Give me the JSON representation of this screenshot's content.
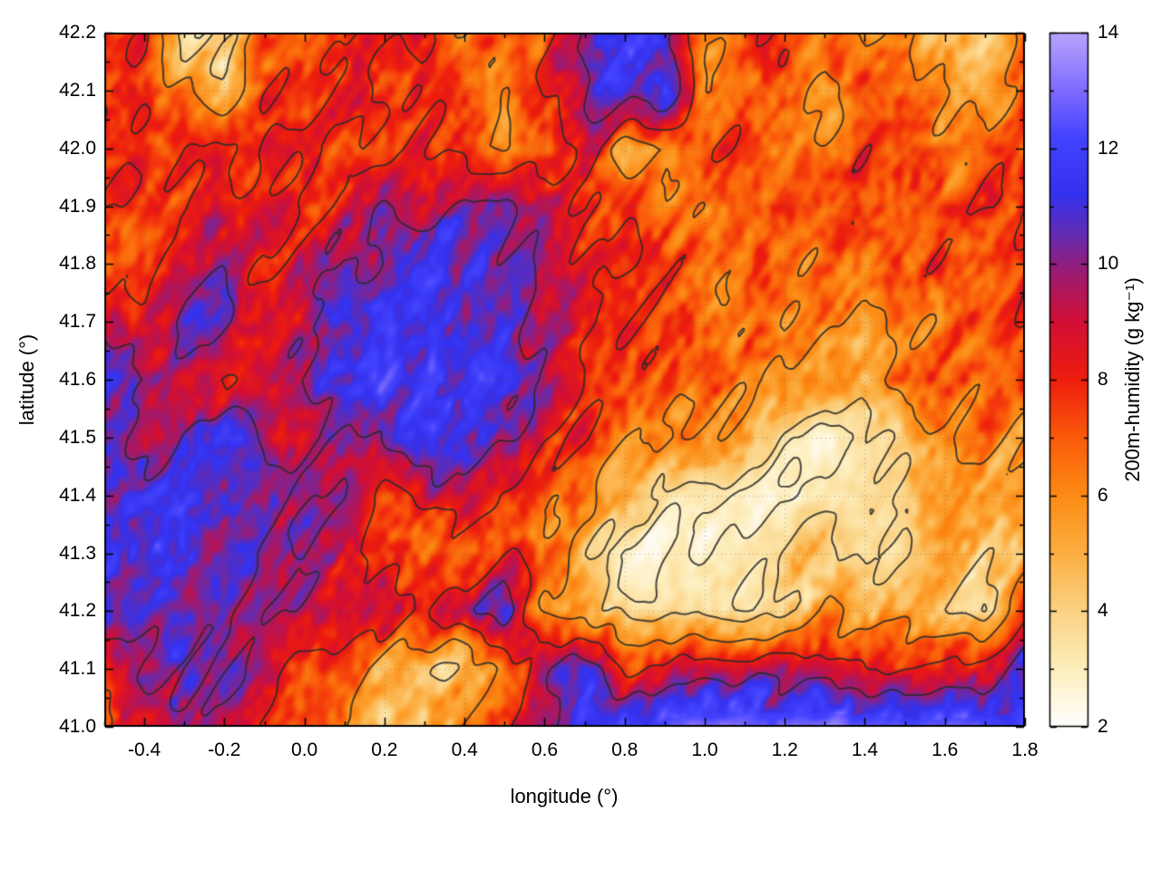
{
  "chart_data": {
    "type": "heatmap",
    "xlabel": "longitude (°)",
    "ylabel": "latitude (°)",
    "x_range": [
      -0.5,
      1.8
    ],
    "y_range": [
      41.0,
      42.2
    ],
    "x_ticks": {
      "values": [
        -0.4,
        -0.2,
        0.0,
        0.2,
        0.4,
        0.6,
        0.8,
        1.0,
        1.2,
        1.4,
        1.6,
        1.8
      ],
      "labels": [
        "-0.4",
        "-0.2",
        "0.0",
        "0.2",
        "0.4",
        "0.6",
        "0.8",
        "1.0",
        "1.2",
        "1.4",
        "1.6",
        "1.8"
      ]
    },
    "y_ticks": {
      "values": [
        41.0,
        41.1,
        41.2,
        41.3,
        41.4,
        41.5,
        41.6,
        41.7,
        41.8,
        41.9,
        42.0,
        42.1,
        42.2
      ],
      "labels": [
        "41.0",
        "41.1",
        "41.2",
        "41.3",
        "41.4",
        "41.5",
        "41.6",
        "41.7",
        "41.8",
        "41.9",
        "42.0",
        "42.1",
        "42.2"
      ]
    },
    "colorbar": {
      "label": "200m-humidity (g kg⁻¹)",
      "range": [
        2,
        14
      ],
      "ticks": [
        2,
        4,
        6,
        8,
        10,
        12,
        14
      ],
      "tick_labels": [
        "2",
        "4",
        "6",
        "8",
        "10",
        "12",
        "14"
      ],
      "colormap": [
        {
          "value": 2,
          "color": "#ffffff"
        },
        {
          "value": 3,
          "color": "#fdeebc"
        },
        {
          "value": 4,
          "color": "#fbd283"
        },
        {
          "value": 5,
          "color": "#fcae41"
        },
        {
          "value": 6,
          "color": "#fc8b14"
        },
        {
          "value": 7,
          "color": "#fa5b0a"
        },
        {
          "value": 8,
          "color": "#ee1d0d"
        },
        {
          "value": 9,
          "color": "#d20f35"
        },
        {
          "value": 9.8,
          "color": "#a01a6e"
        },
        {
          "value": 10.5,
          "color": "#642bb0"
        },
        {
          "value": 11.2,
          "color": "#3431ee"
        },
        {
          "value": 12.2,
          "color": "#4343ff"
        },
        {
          "value": 13,
          "color": "#7e6bff"
        },
        {
          "value": 14,
          "color": "#b8a3fc"
        }
      ]
    },
    "contour_levels": [
      3,
      4,
      6,
      8,
      10
    ],
    "contour_color": "#2d2d2d",
    "grid": {
      "x0": -0.5,
      "x1": 1.8,
      "y0": 41.0,
      "y1": 42.2,
      "nx": 24,
      "ny": 13,
      "rows_south_to_north": true,
      "values": [
        [
          7.5,
          8.5,
          10,
          9.5,
          8,
          7,
          5.5,
          5,
          4.5,
          6,
          8,
          10.5,
          11,
          11.5,
          12.5,
          13,
          13,
          13,
          13,
          13,
          12.5,
          12.5,
          12.5,
          12.5
        ],
        [
          9,
          10,
          10.5,
          10,
          9,
          8,
          7,
          5,
          4,
          4.5,
          6,
          10.5,
          11,
          8,
          8,
          8.5,
          9,
          9,
          8.5,
          8,
          8,
          8.5,
          9,
          11
        ],
        [
          11,
          11,
          11,
          10.5,
          10,
          9.5,
          9,
          9.5,
          8,
          9,
          10.5,
          6,
          5,
          4,
          3.5,
          3.5,
          3.5,
          4,
          5.5,
          5.5,
          5,
          4,
          3.5,
          8
        ],
        [
          11,
          11,
          11,
          11,
          10.5,
          10,
          9,
          8,
          7,
          6.5,
          8,
          7,
          4,
          2.5,
          2.5,
          2.5,
          3,
          4,
          5,
          3.5,
          3.5,
          5,
          4.5,
          5
        ],
        [
          11,
          11.5,
          11,
          10.5,
          10.5,
          10,
          9.5,
          8,
          9,
          10,
          7,
          6.5,
          6,
          5,
          3,
          3,
          3,
          2.5,
          3,
          3.5,
          4,
          5.5,
          5,
          5.5
        ],
        [
          10.5,
          8.5,
          10.5,
          11,
          9,
          9,
          10,
          11,
          11,
          11,
          10,
          8,
          8,
          6.5,
          6,
          5.5,
          5,
          3,
          3,
          3.5,
          4,
          6,
          6.5,
          6
        ],
        [
          11,
          10.5,
          8.5,
          8,
          9.5,
          10,
          11,
          11.5,
          11.5,
          11.5,
          11,
          10,
          8,
          7.5,
          7,
          7,
          6,
          6,
          5,
          5,
          7.5,
          7,
          6.5,
          7.5
        ],
        [
          8.5,
          8,
          10.5,
          10.5,
          8.5,
          9,
          11,
          11.5,
          11.5,
          11.5,
          11,
          9.5,
          9,
          8,
          7.5,
          7,
          7,
          6,
          6,
          5.5,
          6,
          6.5,
          7,
          8
        ],
        [
          7.5,
          7.5,
          9.5,
          9.5,
          8,
          8.5,
          10.5,
          10,
          11,
          11,
          10.5,
          9.5,
          8.5,
          8,
          7.5,
          7,
          6.5,
          6.5,
          6.5,
          6.5,
          7,
          7.5,
          7,
          7.5
        ],
        [
          8,
          8,
          7.5,
          8.5,
          8,
          8,
          8.5,
          9.5,
          9.5,
          10.5,
          10.5,
          9,
          8,
          8,
          6.5,
          6.5,
          7,
          7,
          7.5,
          7.5,
          6.5,
          7,
          7.5,
          7.5
        ],
        [
          7.5,
          7.5,
          8,
          7.5,
          7.5,
          8,
          7.5,
          8,
          8,
          7.5,
          5.5,
          7.5,
          9,
          5.5,
          5.5,
          8,
          8,
          6.5,
          6.5,
          7.5,
          7.5,
          6,
          7.5,
          7
        ],
        [
          8,
          8,
          6,
          4.5,
          7.5,
          7.5,
          7.5,
          8,
          8,
          8,
          6,
          8,
          10,
          11.5,
          11.5,
          5.5,
          7.5,
          7.5,
          5,
          7.5,
          7.5,
          6,
          4.5,
          7
        ],
        [
          8,
          7.5,
          3.5,
          4,
          6.5,
          7,
          7.5,
          8,
          8,
          6,
          7.5,
          7.5,
          10.5,
          11.5,
          11,
          6,
          7.5,
          7.5,
          7,
          6,
          6.5,
          4.5,
          4.5,
          7.5
        ]
      ]
    }
  }
}
